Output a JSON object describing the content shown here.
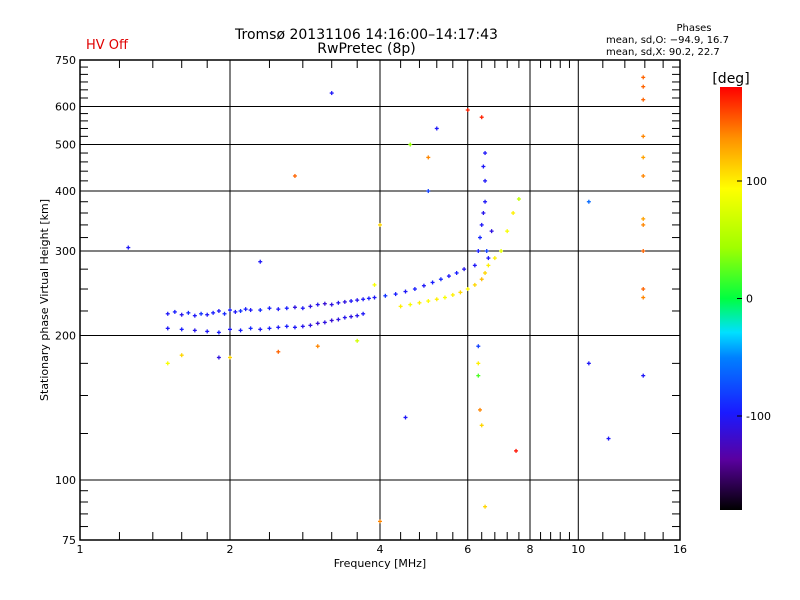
{
  "header": {
    "title": "Tromsø 20131106 14:16:00–14:17:43",
    "subtitle": "RwPretec (8p)",
    "status": "HV Off",
    "phases_title": "Phases",
    "phases_o": "mean, sd,O: −94.9, 16.7",
    "phases_x": "mean, sd,X:  90.2, 22.7"
  },
  "colors": {
    "status": "#e00000"
  },
  "chart_data": {
    "type": "scatter",
    "title": "Tromsø 20131106 14:16:00–14:17:43",
    "xlabel": "Frequency [MHz]",
    "ylabel": "Stationary phase Virtual Height [km]",
    "xscale": "log",
    "yscale": "log",
    "xlim": [
      1,
      16
    ],
    "ylim": [
      75,
      750
    ],
    "xticks": [
      1,
      2,
      4,
      6,
      8,
      10,
      16
    ],
    "xtick_labels": [
      "1",
      "2",
      "4",
      "6",
      "8",
      "10",
      "16"
    ],
    "xminor": [
      1.2,
      1.4,
      1.6,
      1.8,
      2.4,
      2.8,
      3.2,
      3.6,
      4.4,
      4.8,
      5.2,
      5.6,
      6.4,
      6.8,
      7.2,
      7.6,
      8.4,
      8.8,
      9.2,
      9.6,
      11.2,
      12.4,
      13.6,
      14.8
    ],
    "xgrid": [
      2,
      4,
      6,
      8,
      10
    ],
    "yticks": [
      75,
      100,
      200,
      300,
      400,
      500,
      600,
      750
    ],
    "ytick_labels": [
      "75",
      "100",
      "200",
      "300",
      "400",
      "500",
      "600",
      "750"
    ],
    "yminor": [
      80,
      85,
      90,
      95,
      125,
      150,
      175,
      225,
      250,
      275,
      320,
      340,
      360,
      380,
      420,
      440,
      460,
      480,
      520,
      540,
      560,
      580,
      625,
      650,
      675,
      700,
      725
    ],
    "ygrid": [
      100,
      200,
      300,
      400,
      500,
      600
    ],
    "colorbar": {
      "label": "[deg]",
      "range": [
        -180,
        180
      ],
      "ticks": [
        100,
        0,
        -100
      ],
      "tick_labels": [
        "100",
        "0",
        "-100"
      ]
    },
    "points_fields": [
      "freq_MHz",
      "height_km",
      "phase_deg"
    ],
    "points": [
      [
        1.5,
        222,
        -100
      ],
      [
        1.55,
        224,
        -95
      ],
      [
        1.6,
        221,
        -105
      ],
      [
        1.65,
        223,
        -90
      ],
      [
        1.7,
        220,
        -100
      ],
      [
        1.75,
        222,
        -85
      ],
      [
        1.8,
        221,
        -100
      ],
      [
        1.85,
        223,
        -95
      ],
      [
        1.9,
        225,
        -100
      ],
      [
        1.95,
        222,
        -90
      ],
      [
        2.0,
        226,
        -95
      ],
      [
        2.05,
        224,
        -100
      ],
      [
        2.1,
        225,
        -85
      ],
      [
        2.15,
        227,
        -95
      ],
      [
        2.2,
        226,
        -100
      ],
      [
        2.3,
        226,
        -90
      ],
      [
        2.4,
        228,
        -95
      ],
      [
        2.5,
        227,
        -100
      ],
      [
        2.6,
        228,
        -95
      ],
      [
        2.7,
        229,
        -110
      ],
      [
        2.8,
        228,
        -100
      ],
      [
        2.9,
        230,
        -110
      ],
      [
        3.0,
        232,
        -105
      ],
      [
        3.1,
        233,
        -115
      ],
      [
        3.2,
        232,
        -110
      ],
      [
        3.3,
        234,
        -105
      ],
      [
        3.4,
        235,
        -110
      ],
      [
        3.5,
        236,
        -100
      ],
      [
        3.6,
        237,
        -105
      ],
      [
        3.7,
        238,
        -100
      ],
      [
        3.8,
        239,
        -95
      ],
      [
        3.9,
        240,
        -100
      ],
      [
        4.1,
        242,
        -85
      ],
      [
        4.3,
        244,
        -95
      ],
      [
        4.5,
        247,
        -100
      ],
      [
        4.7,
        250,
        -95
      ],
      [
        4.9,
        254,
        -100
      ],
      [
        5.1,
        258,
        -95
      ],
      [
        5.3,
        262,
        -90
      ],
      [
        5.5,
        266,
        -100
      ],
      [
        5.7,
        270,
        -95
      ],
      [
        5.9,
        275,
        -105
      ],
      [
        1.5,
        207,
        -100
      ],
      [
        1.6,
        206,
        -95
      ],
      [
        1.7,
        205,
        -105
      ],
      [
        1.8,
        204,
        -100
      ],
      [
        1.9,
        203,
        -95
      ],
      [
        2.0,
        206,
        -100
      ],
      [
        2.1,
        205,
        -95
      ],
      [
        2.2,
        207,
        -90
      ],
      [
        2.3,
        206,
        -100
      ],
      [
        2.4,
        207,
        -95
      ],
      [
        2.5,
        208,
        -100
      ],
      [
        2.6,
        209,
        -95
      ],
      [
        2.7,
        208,
        -100
      ],
      [
        2.8,
        209,
        -105
      ],
      [
        2.9,
        210,
        -110
      ],
      [
        3.0,
        212,
        -115
      ],
      [
        3.1,
        213,
        -110
      ],
      [
        3.2,
        215,
        -115
      ],
      [
        3.3,
        216,
        -110
      ],
      [
        3.4,
        218,
        -105
      ],
      [
        3.5,
        219,
        -110
      ],
      [
        3.6,
        220,
        -105
      ],
      [
        3.7,
        222,
        -100
      ],
      [
        6.2,
        280,
        -100
      ],
      [
        6.3,
        300,
        -95
      ],
      [
        6.35,
        320,
        -90
      ],
      [
        6.4,
        340,
        -100
      ],
      [
        6.45,
        360,
        -105
      ],
      [
        6.5,
        380,
        -100
      ],
      [
        6.5,
        420,
        -100
      ],
      [
        6.45,
        450,
        -100
      ],
      [
        6.5,
        480,
        -100
      ],
      [
        6.55,
        300,
        -80
      ],
      [
        6.6,
        290,
        -100
      ],
      [
        6.7,
        330,
        -110
      ],
      [
        4.4,
        230,
        100
      ],
      [
        4.6,
        232,
        90
      ],
      [
        4.8,
        234,
        100
      ],
      [
        5.0,
        236,
        95
      ],
      [
        5.2,
        238,
        100
      ],
      [
        5.4,
        240,
        90
      ],
      [
        5.6,
        243,
        100
      ],
      [
        5.8,
        246,
        110
      ],
      [
        6.0,
        250,
        95
      ],
      [
        6.2,
        255,
        110
      ],
      [
        6.4,
        262,
        120
      ],
      [
        6.5,
        270,
        110
      ],
      [
        6.6,
        280,
        100
      ],
      [
        6.8,
        290,
        100
      ],
      [
        7.0,
        300,
        80
      ],
      [
        7.2,
        330,
        90
      ],
      [
        7.4,
        360,
        100
      ],
      [
        7.6,
        385,
        60
      ],
      [
        1.25,
        305,
        -100
      ],
      [
        3.2,
        640,
        -100
      ],
      [
        5.2,
        540,
        -100
      ],
      [
        5.0,
        470,
        140
      ],
      [
        4.6,
        500,
        40
      ],
      [
        6.0,
        590,
        170
      ],
      [
        6.4,
        570,
        170
      ],
      [
        2.7,
        430,
        150
      ],
      [
        2.3,
        285,
        -100
      ],
      [
        4.5,
        135,
        -100
      ],
      [
        5.0,
        400,
        -80
      ],
      [
        6.3,
        190,
        -80
      ],
      [
        6.3,
        175,
        100
      ],
      [
        6.3,
        165,
        20
      ],
      [
        6.35,
        140,
        140
      ],
      [
        6.4,
        130,
        110
      ],
      [
        7.5,
        115,
        175
      ],
      [
        10.5,
        380,
        -60
      ],
      [
        10.5,
        175,
        -100
      ],
      [
        11.5,
        122,
        -100
      ],
      [
        4.0,
        82,
        140
      ],
      [
        6.5,
        88,
        110
      ],
      [
        3.0,
        190,
        140
      ],
      [
        2.5,
        185,
        150
      ],
      [
        1.9,
        180,
        -110
      ],
      [
        1.6,
        182,
        110
      ],
      [
        1.5,
        175,
        90
      ],
      [
        2.0,
        180,
        110
      ],
      [
        3.6,
        195,
        70
      ],
      [
        4.0,
        340,
        110
      ],
      [
        3.9,
        255,
        90
      ],
      [
        13.5,
        690,
        150
      ],
      [
        13.5,
        660,
        150
      ],
      [
        13.5,
        620,
        150
      ],
      [
        13.5,
        520,
        140
      ],
      [
        13.5,
        470,
        130
      ],
      [
        13.5,
        430,
        140
      ],
      [
        13.5,
        350,
        130
      ],
      [
        13.5,
        340,
        140
      ],
      [
        13.5,
        300,
        150
      ],
      [
        13.5,
        250,
        150
      ],
      [
        13.5,
        240,
        140
      ],
      [
        13.5,
        165,
        -100
      ]
    ]
  }
}
